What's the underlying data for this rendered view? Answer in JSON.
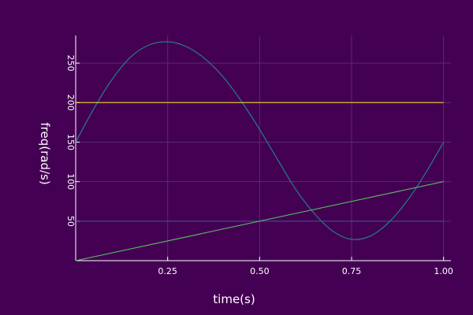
{
  "chart_data": {
    "type": "line",
    "title": "",
    "xlabel": "time(s)",
    "ylabel": "freq(rad/s)",
    "xlim": [
      0,
      1.02
    ],
    "ylim": [
      0,
      285
    ],
    "xticks": [
      0.25,
      0.5,
      0.75,
      1.0
    ],
    "xtick_labels": [
      "0.25",
      "0.50",
      "0.75",
      "1.00"
    ],
    "yticks": [
      50,
      100,
      150,
      200,
      250
    ],
    "ytick_labels": [
      "50",
      "100",
      "150",
      "200",
      "250"
    ],
    "grid": true,
    "legend": "none",
    "colors": {
      "background": "#440154",
      "grid": "#5a2a6e",
      "axis": "#ffffff"
    },
    "series": [
      {
        "color": "#21918c",
        "x": [
          0.0,
          0.05,
          0.1,
          0.15,
          0.2,
          0.25,
          0.3,
          0.35,
          0.4,
          0.45,
          0.5,
          0.55,
          0.6,
          0.65,
          0.7,
          0.75,
          0.8,
          0.85,
          0.9,
          0.95,
          1.0
        ],
        "y": [
          150,
          193,
          230,
          258,
          273,
          277,
          271,
          256,
          233,
          202,
          166,
          127,
          89,
          59,
          37,
          27,
          31,
          48,
          75,
          110,
          150
        ]
      },
      {
        "color": "#3b528b",
        "x": [
          0,
          1
        ],
        "y": [
          50,
          50
        ]
      },
      {
        "color": "#fde725",
        "x": [
          0,
          1
        ],
        "y": [
          200,
          200
        ]
      },
      {
        "color": "#5ec962",
        "x": [
          0,
          1
        ],
        "y": [
          0,
          100
        ]
      }
    ]
  }
}
